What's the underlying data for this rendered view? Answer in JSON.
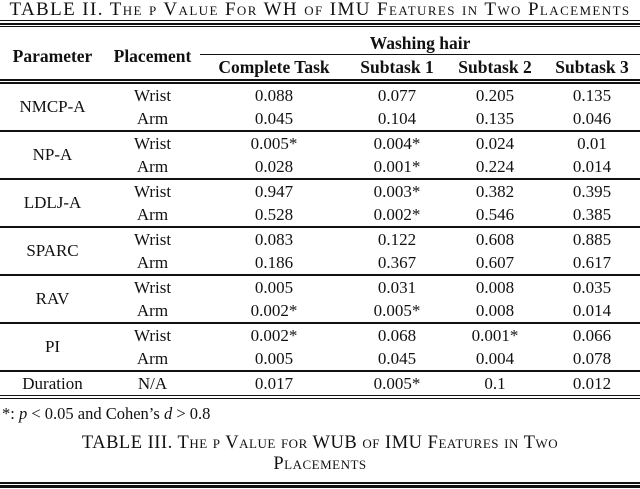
{
  "page": {
    "background_color": "#ffffff",
    "text_color": "#111111",
    "rule_color": "#111111"
  },
  "table2": {
    "caption": "TABLE II. The p Value For WH of IMU Features in Two Placements",
    "header": {
      "parameter": "Parameter",
      "placement": "Placement",
      "span_label": "Washing hair",
      "columns": [
        "Complete Task",
        "Subtask 1",
        "Subtask 2",
        "Subtask 3"
      ]
    },
    "groups": [
      {
        "parameter": "NMCP-A",
        "rows": [
          {
            "placement": "Wrist",
            "values": [
              "0.088",
              "0.077",
              "0.205",
              "0.135"
            ]
          },
          {
            "placement": "Arm",
            "values": [
              "0.045",
              "0.104",
              "0.135",
              "0.046"
            ]
          }
        ]
      },
      {
        "parameter": "NP-A",
        "rows": [
          {
            "placement": "Wrist",
            "values": [
              "0.005*",
              "0.004*",
              "0.024",
              "0.01"
            ]
          },
          {
            "placement": "Arm",
            "values": [
              "0.028",
              "0.001*",
              "0.224",
              "0.014"
            ]
          }
        ]
      },
      {
        "parameter": "LDLJ-A",
        "rows": [
          {
            "placement": "Wrist",
            "values": [
              "0.947",
              "0.003*",
              "0.382",
              "0.395"
            ]
          },
          {
            "placement": "Arm",
            "values": [
              "0.528",
              "0.002*",
              "0.546",
              "0.385"
            ]
          }
        ]
      },
      {
        "parameter": "SPARC",
        "rows": [
          {
            "placement": "Wrist",
            "values": [
              "0.083",
              "0.122",
              "0.608",
              "0.885"
            ]
          },
          {
            "placement": "Arm",
            "values": [
              "0.186",
              "0.367",
              "0.607",
              "0.617"
            ]
          }
        ]
      },
      {
        "parameter": "RAV",
        "rows": [
          {
            "placement": "Wrist",
            "values": [
              "0.005",
              "0.031",
              "0.008",
              "0.035"
            ]
          },
          {
            "placement": "Arm",
            "values": [
              "0.002*",
              "0.005*",
              "0.008",
              "0.014"
            ]
          }
        ]
      },
      {
        "parameter": "PI",
        "rows": [
          {
            "placement": "Wrist",
            "values": [
              "0.002*",
              "0.068",
              "0.001*",
              "0.066"
            ]
          },
          {
            "placement": "Arm",
            "values": [
              "0.005",
              "0.045",
              "0.004",
              "0.078"
            ]
          }
        ]
      },
      {
        "parameter": "Duration",
        "rows": [
          {
            "placement": "N/A",
            "values": [
              "0.017",
              "0.005*",
              "0.1",
              "0.012"
            ]
          }
        ]
      }
    ],
    "footnote": {
      "marker": "*: ",
      "p_symbol": "p",
      "middle": " < 0.05 and Cohen’s ",
      "d_symbol": "d",
      "tail": " > 0.8"
    }
  },
  "table3": {
    "caption": "TABLE III. The p Value for WUB of IMU Features in Two Placements"
  }
}
